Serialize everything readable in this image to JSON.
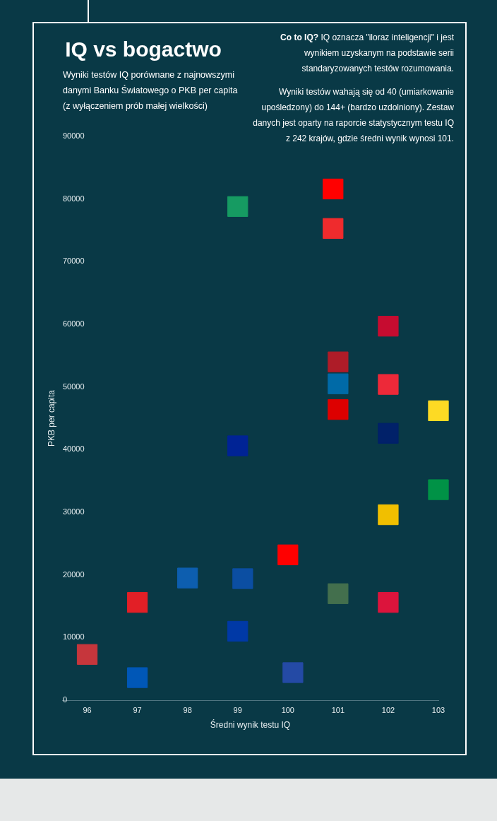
{
  "chart_data": {
    "type": "scatter",
    "title": "IQ vs bogactwo",
    "subtitle": "Wyniki testów IQ porównane z najnowszymi danymi Banku Światowego o PKB per capita (z wyłączeniem prób małej wielkości)",
    "xlabel": "Średni wynik testu IQ",
    "ylabel": "PKB per capita",
    "annotations": [
      "Co to IQ?",
      "IQ oznacza \"iloraz inteligencji\" i jest wynikiem uzyskanym na podstawie serii standaryzowanych testów rozumowania.",
      "Wyniki testów wahają się od 40 (umiarkowanie upośledzony) do 144+ (bardzo uzdolniony). Zestaw danych jest oparty na raporcie statystycznym testu IQ z 242 krajów, gdzie średni wynik wynosi 101."
    ],
    "x": [
      96,
      97,
      97,
      98,
      99,
      99.1,
      99,
      99,
      100,
      100.1,
      100.9,
      100.9,
      101,
      101,
      101,
      101,
      102,
      102,
      102,
      102,
      102,
      103,
      103
    ],
    "values": [
      7300,
      3600,
      15600,
      19500,
      11000,
      19400,
      40600,
      78800,
      23200,
      4400,
      81600,
      75300,
      54000,
      50500,
      46400,
      17000,
      59700,
      50400,
      42600,
      29600,
      15600,
      46200,
      33600
    ],
    "colors": [
      "#c6363c",
      "#0057b7",
      "#e21f26",
      "#0d5eaf",
      "#0039a6",
      "#0b4ea2",
      "#002395",
      "#169b62",
      "#ff0000",
      "#244aa5",
      "#ff0000",
      "#ef2b2d",
      "#ae1c28",
      "#006aa7",
      "#dd0000",
      "#436f4d",
      "#c60c30",
      "#ed2939",
      "#012169",
      "#f1bf00",
      "#dc143c",
      "#fdda24",
      "#009246"
    ],
    "xlim": [
      95.5,
      103
    ],
    "xticks": [
      96,
      97,
      98,
      99,
      100,
      101,
      102,
      103
    ],
    "ylim": [
      0,
      90000
    ],
    "yticks": [
      0,
      10000,
      20000,
      30000,
      40000,
      50000,
      60000,
      70000,
      80000,
      90000
    ],
    "marker": "square"
  }
}
